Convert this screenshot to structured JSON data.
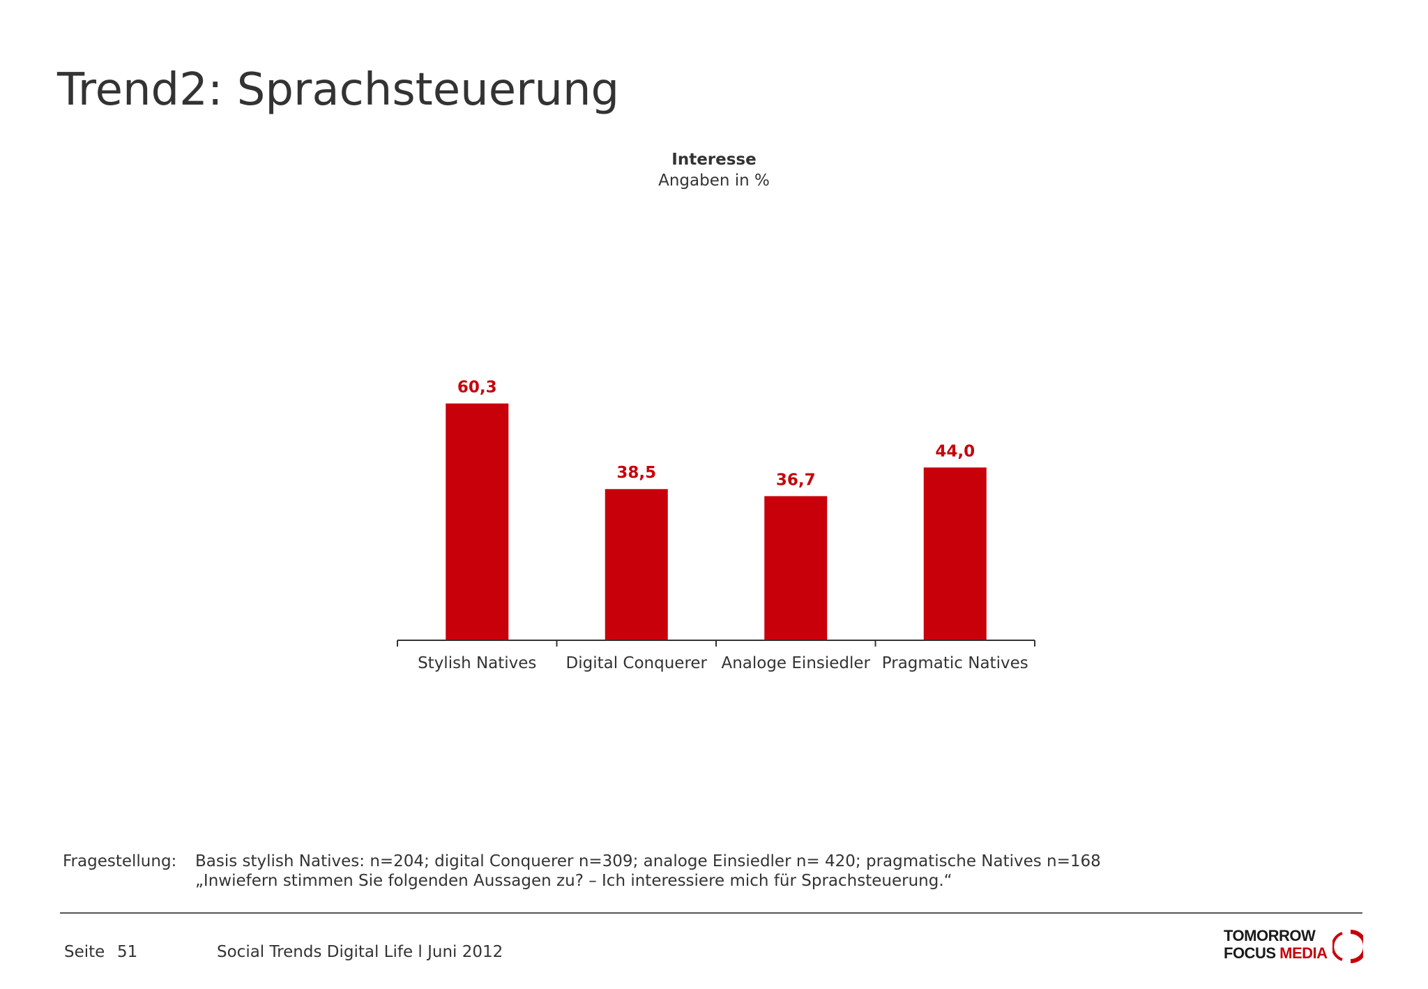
{
  "page": {
    "title": "Trend2: Sprachsteuerung"
  },
  "chart_data": {
    "type": "bar",
    "title": "Interesse",
    "subtitle": "Angaben in %",
    "categories": [
      "Stylish Natives",
      "Digital Conquerer",
      "Analoge Einsiedler",
      "Pragmatic Natives"
    ],
    "values": [
      60.3,
      38.5,
      36.7,
      44.0
    ],
    "value_labels": [
      "60,3",
      "38,5",
      "36,7",
      "44,0"
    ],
    "bar_color": "#c8000a",
    "label_color": "#c8000a",
    "grid": false,
    "legend": "none",
    "ylim": [
      0,
      100
    ]
  },
  "footnote": {
    "label": "Fragestellung:",
    "line1": "Basis stylish Natives: n=204; digital Conquerer n=309; analoge Einsiedler n= 420; pragmatische Natives n=168",
    "line2": "„Inwiefern stimmen Sie folgenden Aussagen zu? – Ich interessiere mich für Sprachsteuerung.“"
  },
  "footer": {
    "page_label": "Seite",
    "page_number": "51",
    "text": "Social Trends Digital Life l Juni 2012"
  },
  "logo": {
    "line1": "TOMORROW",
    "line2a": "FOCUS",
    "line2b": "MEDIA",
    "accent_color": "#c8000a"
  }
}
